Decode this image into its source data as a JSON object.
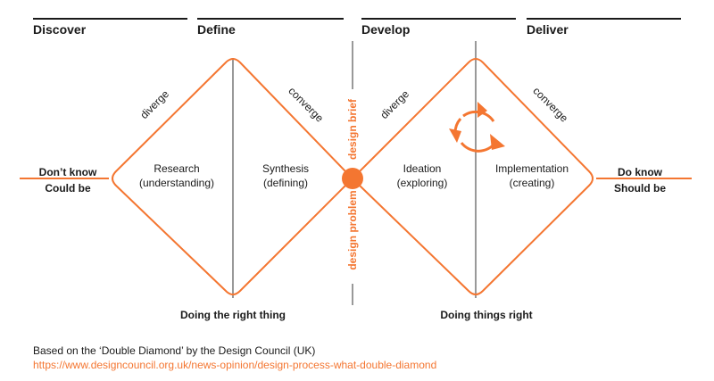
{
  "phases": [
    "Discover",
    "Define",
    "Develop",
    "Deliver"
  ],
  "left_edge": {
    "line1": "Don’t  know",
    "line2": "Could be"
  },
  "right_edge": {
    "line1": "Do  know",
    "line2": "Should be"
  },
  "diverge_labels": [
    "diverge",
    "diverge"
  ],
  "converge_labels": [
    "converge",
    "converge"
  ],
  "activities": [
    {
      "name": "Research",
      "detail": "(understanding)"
    },
    {
      "name": "Synthesis",
      "detail": "(defining)"
    },
    {
      "name": "Ideation",
      "detail": "(exploring)"
    },
    {
      "name": "Implementation",
      "detail": "(creating)"
    }
  ],
  "center_labels": {
    "top": "design brief",
    "bottom": "design problem"
  },
  "bottom_labels": {
    "left": "Doing the right thing",
    "right": "Doing things right"
  },
  "footer": {
    "credit": "Based on the ‘Double Diamond’ by the Design Council (UK)",
    "link": "https://www.designcouncil.org.uk/news-opinion/design-process-what-double-diamond"
  },
  "colors": {
    "accent": "#f47631",
    "divider": "#999999",
    "text": "#1a1a1a"
  },
  "icons": {
    "iteration_cycle": "circular-arrows-icon"
  }
}
